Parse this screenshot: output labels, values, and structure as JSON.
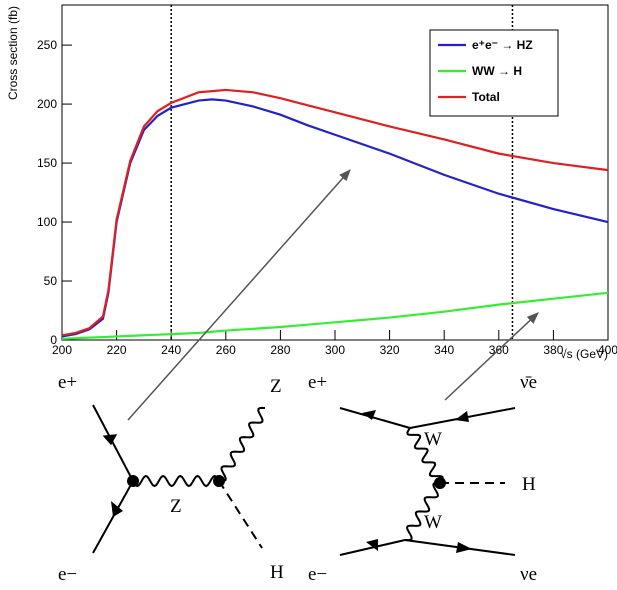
{
  "chart_data": {
    "type": "line",
    "y_label": "Cross section (fb)",
    "x_label": "√s (GeV)",
    "x": [
      200,
      205,
      210,
      215,
      217,
      220,
      225,
      230,
      235,
      240,
      250,
      255,
      260,
      270,
      280,
      290,
      300,
      320,
      340,
      360,
      380,
      400
    ],
    "series": [
      {
        "name": "e⁺e⁻ → HZ",
        "color": "#2222cc",
        "values": [
          3,
          5,
          9,
          18,
          40,
          100,
          150,
          178,
          190,
          197,
          203,
          204,
          203,
          198,
          191,
          182,
          174,
          158,
          140,
          124,
          111,
          100
        ]
      },
      {
        "name": "WW → H",
        "color": "#33ee33",
        "values": [
          1,
          1.5,
          2,
          2.5,
          2.7,
          3,
          3.5,
          4,
          4.5,
          5,
          6,
          7,
          8,
          9.5,
          11,
          13,
          15,
          19,
          24,
          30,
          35,
          40
        ]
      },
      {
        "name": "Total",
        "color": "#e02020",
        "values": [
          4,
          6,
          10,
          20,
          42,
          102,
          152,
          181,
          194,
          201,
          210,
          211,
          212,
          210,
          205,
          199,
          193,
          181,
          170,
          158,
          150,
          144
        ]
      }
    ],
    "vlines": [
      240,
      365
    ],
    "xlim": [
      200,
      400
    ],
    "ylim": [
      0,
      284
    ],
    "xticks": [
      200,
      220,
      240,
      260,
      280,
      300,
      320,
      340,
      360,
      380,
      400
    ],
    "yticks": [
      0,
      50,
      100,
      150,
      200,
      250
    ]
  },
  "diagrams": {
    "left": {
      "e_plus": "e+",
      "z_out": "Z",
      "e_minus": "e−",
      "h_out": "H",
      "propagator": "Z"
    },
    "right": {
      "e_plus": "e+",
      "nubar": "ν̄e",
      "w_top": "W",
      "h_out": "H",
      "w_bottom": "W",
      "e_minus": "e−",
      "nu": "νe"
    }
  }
}
